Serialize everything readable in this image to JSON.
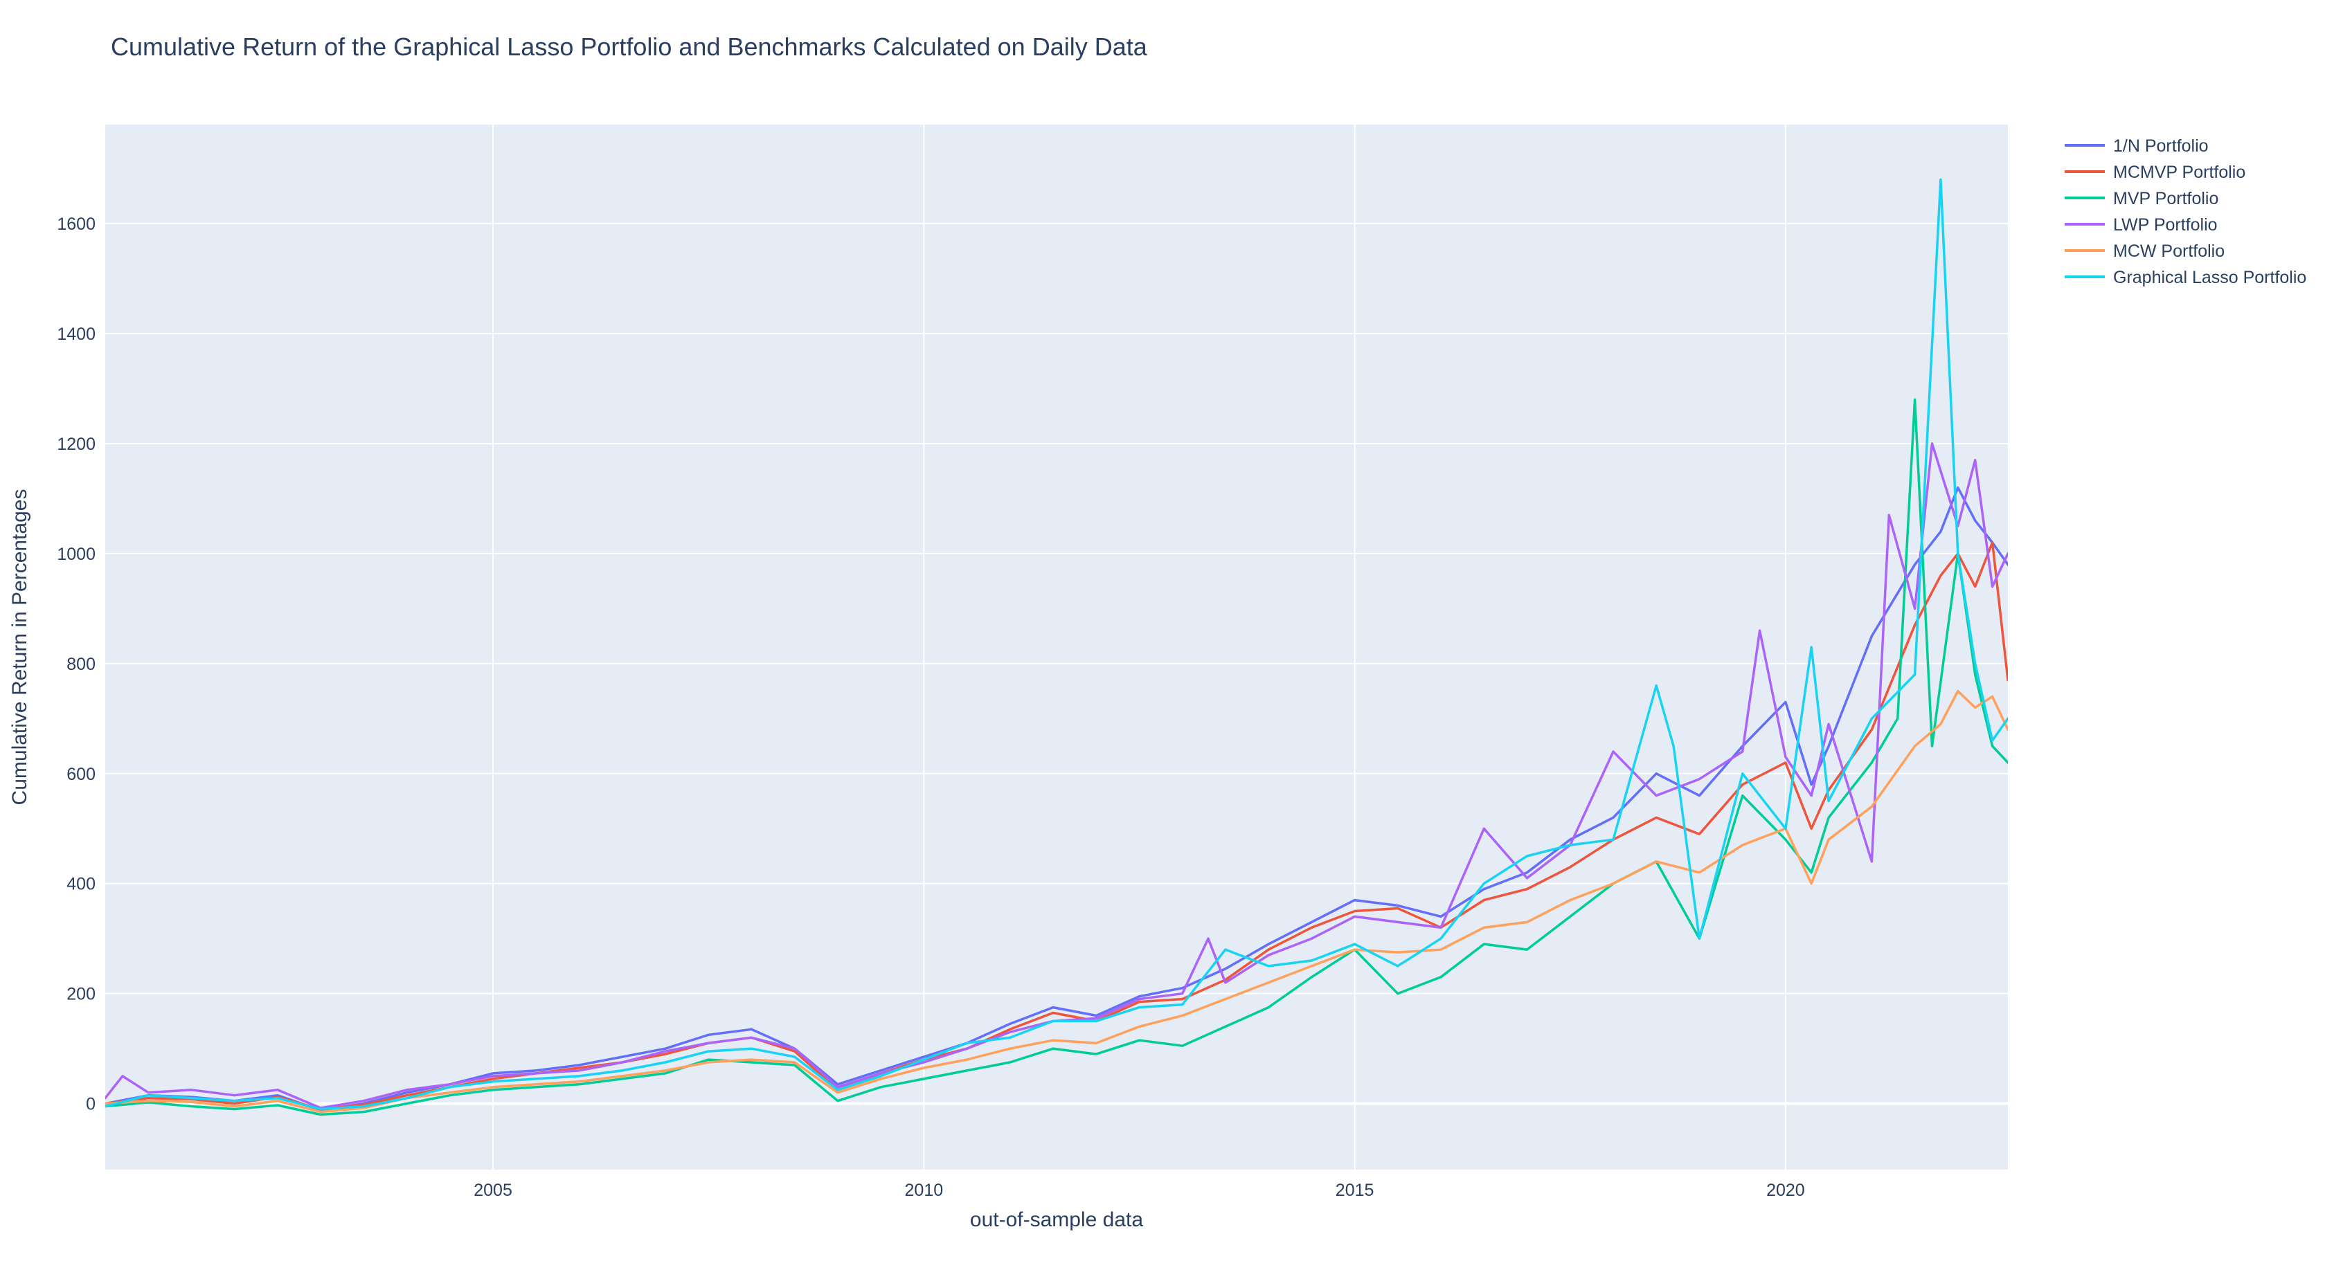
{
  "chart_data": {
    "type": "line",
    "title": "Cumulative Return of the Graphical Lasso Portfolio and Benchmarks Calculated on Daily Data",
    "xlabel": "out-of-sample data",
    "ylabel": "Cumulative Return in Percentages",
    "xlim": [
      2000.5,
      2022.58
    ],
    "ylim": [
      -120,
      1780
    ],
    "x_ticks": [
      2005,
      2010,
      2015,
      2020
    ],
    "x_tick_labels": [
      "2005",
      "2010",
      "2015",
      "2020"
    ],
    "y_ticks": [
      0,
      200,
      400,
      600,
      800,
      1000,
      1200,
      1400,
      1600
    ],
    "y_tick_labels": [
      "0",
      "200",
      "400",
      "600",
      "800",
      "1000",
      "1200",
      "1400",
      "1600"
    ],
    "grid": true,
    "legend_position": "top-right",
    "colors": {
      "background": "#ffffff",
      "plot_background": "#e5ecf6",
      "grid": "#ffffff",
      "text": "#2a3f5f"
    },
    "series": [
      {
        "name": "1/N Portfolio",
        "color": "#636efa",
        "points": [
          [
            2000.5,
            0
          ],
          [
            2001.0,
            15
          ],
          [
            2001.5,
            12
          ],
          [
            2002.0,
            5
          ],
          [
            2002.5,
            15
          ],
          [
            2003.0,
            -12
          ],
          [
            2003.5,
            0
          ],
          [
            2004.0,
            20
          ],
          [
            2004.5,
            35
          ],
          [
            2005.0,
            55
          ],
          [
            2005.5,
            60
          ],
          [
            2006.0,
            70
          ],
          [
            2006.5,
            85
          ],
          [
            2007.0,
            100
          ],
          [
            2007.5,
            125
          ],
          [
            2008.0,
            135
          ],
          [
            2008.5,
            100
          ],
          [
            2009.0,
            35
          ],
          [
            2009.5,
            60
          ],
          [
            2010.0,
            85
          ],
          [
            2010.5,
            110
          ],
          [
            2011.0,
            145
          ],
          [
            2011.5,
            175
          ],
          [
            2012.0,
            160
          ],
          [
            2012.5,
            195
          ],
          [
            2013.0,
            210
          ],
          [
            2013.5,
            245
          ],
          [
            2014.0,
            290
          ],
          [
            2014.5,
            330
          ],
          [
            2015.0,
            370
          ],
          [
            2015.5,
            360
          ],
          [
            2016.0,
            340
          ],
          [
            2016.5,
            390
          ],
          [
            2017.0,
            420
          ],
          [
            2017.5,
            480
          ],
          [
            2018.0,
            520
          ],
          [
            2018.5,
            600
          ],
          [
            2019.0,
            560
          ],
          [
            2019.5,
            650
          ],
          [
            2020.0,
            730
          ],
          [
            2020.3,
            580
          ],
          [
            2020.5,
            650
          ],
          [
            2021.0,
            850
          ],
          [
            2021.5,
            980
          ],
          [
            2021.8,
            1040
          ],
          [
            2022.0,
            1120
          ],
          [
            2022.2,
            1060
          ],
          [
            2022.4,
            1020
          ],
          [
            2022.58,
            980
          ]
        ]
      },
      {
        "name": "MCMVP Portfolio",
        "color": "#ef553b",
        "points": [
          [
            2000.5,
            0
          ],
          [
            2001.0,
            10
          ],
          [
            2001.5,
            8
          ],
          [
            2002.0,
            0
          ],
          [
            2002.5,
            12
          ],
          [
            2003.0,
            -10
          ],
          [
            2003.5,
            -2
          ],
          [
            2004.0,
            15
          ],
          [
            2004.5,
            30
          ],
          [
            2005.0,
            45
          ],
          [
            2005.5,
            55
          ],
          [
            2006.0,
            65
          ],
          [
            2006.5,
            75
          ],
          [
            2007.0,
            90
          ],
          [
            2007.5,
            110
          ],
          [
            2008.0,
            120
          ],
          [
            2008.5,
            95
          ],
          [
            2009.0,
            25
          ],
          [
            2009.5,
            55
          ],
          [
            2010.0,
            80
          ],
          [
            2010.5,
            100
          ],
          [
            2011.0,
            135
          ],
          [
            2011.5,
            165
          ],
          [
            2012.0,
            150
          ],
          [
            2012.5,
            185
          ],
          [
            2013.0,
            190
          ],
          [
            2013.5,
            225
          ],
          [
            2014.0,
            280
          ],
          [
            2014.5,
            320
          ],
          [
            2015.0,
            350
          ],
          [
            2015.5,
            355
          ],
          [
            2016.0,
            320
          ],
          [
            2016.5,
            370
          ],
          [
            2017.0,
            390
          ],
          [
            2017.5,
            430
          ],
          [
            2018.0,
            480
          ],
          [
            2018.5,
            520
          ],
          [
            2019.0,
            490
          ],
          [
            2019.5,
            580
          ],
          [
            2020.0,
            620
          ],
          [
            2020.3,
            500
          ],
          [
            2020.5,
            570
          ],
          [
            2021.0,
            680
          ],
          [
            2021.5,
            870
          ],
          [
            2021.8,
            960
          ],
          [
            2022.0,
            1000
          ],
          [
            2022.2,
            940
          ],
          [
            2022.4,
            1020
          ],
          [
            2022.58,
            770
          ]
        ]
      },
      {
        "name": "MVP Portfolio",
        "color": "#00cc96",
        "points": [
          [
            2000.5,
            -5
          ],
          [
            2001.0,
            2
          ],
          [
            2001.5,
            -5
          ],
          [
            2002.0,
            -10
          ],
          [
            2002.5,
            -3
          ],
          [
            2003.0,
            -20
          ],
          [
            2003.5,
            -15
          ],
          [
            2004.0,
            0
          ],
          [
            2004.5,
            15
          ],
          [
            2005.0,
            25
          ],
          [
            2005.5,
            30
          ],
          [
            2006.0,
            35
          ],
          [
            2006.5,
            45
          ],
          [
            2007.0,
            55
          ],
          [
            2007.5,
            80
          ],
          [
            2008.0,
            75
          ],
          [
            2008.5,
            70
          ],
          [
            2009.0,
            5
          ],
          [
            2009.5,
            30
          ],
          [
            2010.0,
            45
          ],
          [
            2010.5,
            60
          ],
          [
            2011.0,
            75
          ],
          [
            2011.5,
            100
          ],
          [
            2012.0,
            90
          ],
          [
            2012.5,
            115
          ],
          [
            2013.0,
            105
          ],
          [
            2013.5,
            140
          ],
          [
            2014.0,
            175
          ],
          [
            2014.5,
            230
          ],
          [
            2015.0,
            280
          ],
          [
            2015.5,
            200
          ],
          [
            2016.0,
            230
          ],
          [
            2016.5,
            290
          ],
          [
            2017.0,
            280
          ],
          [
            2017.5,
            340
          ],
          [
            2018.0,
            400
          ],
          [
            2018.5,
            440
          ],
          [
            2019.0,
            300
          ],
          [
            2019.5,
            560
          ],
          [
            2020.0,
            480
          ],
          [
            2020.3,
            420
          ],
          [
            2020.5,
            520
          ],
          [
            2021.0,
            620
          ],
          [
            2021.3,
            700
          ],
          [
            2021.5,
            1280
          ],
          [
            2021.7,
            650
          ],
          [
            2022.0,
            1000
          ],
          [
            2022.2,
            780
          ],
          [
            2022.4,
            650
          ],
          [
            2022.58,
            620
          ]
        ]
      },
      {
        "name": "LWP Portfolio",
        "color": "#ab63fa",
        "points": [
          [
            2000.5,
            10
          ],
          [
            2000.7,
            50
          ],
          [
            2001.0,
            20
          ],
          [
            2001.5,
            25
          ],
          [
            2002.0,
            15
          ],
          [
            2002.5,
            25
          ],
          [
            2003.0,
            -8
          ],
          [
            2003.5,
            5
          ],
          [
            2004.0,
            25
          ],
          [
            2004.5,
            35
          ],
          [
            2005.0,
            50
          ],
          [
            2005.5,
            55
          ],
          [
            2006.0,
            60
          ],
          [
            2006.5,
            75
          ],
          [
            2007.0,
            95
          ],
          [
            2007.5,
            110
          ],
          [
            2008.0,
            120
          ],
          [
            2008.5,
            100
          ],
          [
            2009.0,
            30
          ],
          [
            2009.5,
            55
          ],
          [
            2010.0,
            75
          ],
          [
            2010.5,
            100
          ],
          [
            2011.0,
            130
          ],
          [
            2011.5,
            150
          ],
          [
            2012.0,
            155
          ],
          [
            2012.5,
            190
          ],
          [
            2013.0,
            200
          ],
          [
            2013.3,
            300
          ],
          [
            2013.5,
            220
          ],
          [
            2014.0,
            270
          ],
          [
            2014.5,
            300
          ],
          [
            2015.0,
            340
          ],
          [
            2015.5,
            330
          ],
          [
            2016.0,
            320
          ],
          [
            2016.5,
            500
          ],
          [
            2017.0,
            410
          ],
          [
            2017.5,
            470
          ],
          [
            2018.0,
            640
          ],
          [
            2018.5,
            560
          ],
          [
            2019.0,
            590
          ],
          [
            2019.5,
            640
          ],
          [
            2019.7,
            860
          ],
          [
            2020.0,
            630
          ],
          [
            2020.3,
            560
          ],
          [
            2020.5,
            690
          ],
          [
            2021.0,
            440
          ],
          [
            2021.2,
            1070
          ],
          [
            2021.5,
            900
          ],
          [
            2021.7,
            1200
          ],
          [
            2022.0,
            1050
          ],
          [
            2022.2,
            1170
          ],
          [
            2022.4,
            940
          ],
          [
            2022.58,
            1000
          ]
        ]
      },
      {
        "name": "MCW Portfolio",
        "color": "#ffa15a",
        "points": [
          [
            2000.5,
            0
          ],
          [
            2001.0,
            5
          ],
          [
            2001.5,
            3
          ],
          [
            2002.0,
            -5
          ],
          [
            2002.5,
            5
          ],
          [
            2003.0,
            -15
          ],
          [
            2003.5,
            -8
          ],
          [
            2004.0,
            10
          ],
          [
            2004.5,
            20
          ],
          [
            2005.0,
            30
          ],
          [
            2005.5,
            35
          ],
          [
            2006.0,
            40
          ],
          [
            2006.5,
            50
          ],
          [
            2007.0,
            60
          ],
          [
            2007.5,
            75
          ],
          [
            2008.0,
            80
          ],
          [
            2008.5,
            75
          ],
          [
            2009.0,
            20
          ],
          [
            2009.5,
            45
          ],
          [
            2010.0,
            65
          ],
          [
            2010.5,
            80
          ],
          [
            2011.0,
            100
          ],
          [
            2011.5,
            115
          ],
          [
            2012.0,
            110
          ],
          [
            2012.5,
            140
          ],
          [
            2013.0,
            160
          ],
          [
            2013.5,
            190
          ],
          [
            2014.0,
            220
          ],
          [
            2014.5,
            250
          ],
          [
            2015.0,
            280
          ],
          [
            2015.5,
            275
          ],
          [
            2016.0,
            280
          ],
          [
            2016.5,
            320
          ],
          [
            2017.0,
            330
          ],
          [
            2017.5,
            370
          ],
          [
            2018.0,
            400
          ],
          [
            2018.5,
            440
          ],
          [
            2019.0,
            420
          ],
          [
            2019.5,
            470
          ],
          [
            2020.0,
            500
          ],
          [
            2020.3,
            400
          ],
          [
            2020.5,
            480
          ],
          [
            2021.0,
            540
          ],
          [
            2021.5,
            650
          ],
          [
            2021.8,
            690
          ],
          [
            2022.0,
            750
          ],
          [
            2022.2,
            720
          ],
          [
            2022.4,
            740
          ],
          [
            2022.58,
            680
          ]
        ]
      },
      {
        "name": "Graphical Lasso Portfolio",
        "color": "#19d3f3",
        "points": [
          [
            2000.5,
            -5
          ],
          [
            2001.0,
            15
          ],
          [
            2001.5,
            10
          ],
          [
            2002.0,
            5
          ],
          [
            2002.5,
            10
          ],
          [
            2003.0,
            -10
          ],
          [
            2003.5,
            -5
          ],
          [
            2004.0,
            10
          ],
          [
            2004.5,
            30
          ],
          [
            2005.0,
            40
          ],
          [
            2005.5,
            45
          ],
          [
            2006.0,
            50
          ],
          [
            2006.5,
            60
          ],
          [
            2007.0,
            75
          ],
          [
            2007.5,
            95
          ],
          [
            2008.0,
            100
          ],
          [
            2008.5,
            85
          ],
          [
            2009.0,
            25
          ],
          [
            2009.5,
            50
          ],
          [
            2010.0,
            80
          ],
          [
            2010.5,
            110
          ],
          [
            2011.0,
            120
          ],
          [
            2011.5,
            150
          ],
          [
            2012.0,
            150
          ],
          [
            2012.5,
            175
          ],
          [
            2013.0,
            180
          ],
          [
            2013.5,
            280
          ],
          [
            2014.0,
            250
          ],
          [
            2014.5,
            260
          ],
          [
            2015.0,
            290
          ],
          [
            2015.5,
            250
          ],
          [
            2016.0,
            300
          ],
          [
            2016.5,
            400
          ],
          [
            2017.0,
            450
          ],
          [
            2017.5,
            470
          ],
          [
            2018.0,
            480
          ],
          [
            2018.5,
            760
          ],
          [
            2018.7,
            650
          ],
          [
            2019.0,
            300
          ],
          [
            2019.5,
            600
          ],
          [
            2020.0,
            500
          ],
          [
            2020.3,
            830
          ],
          [
            2020.5,
            550
          ],
          [
            2021.0,
            700
          ],
          [
            2021.5,
            780
          ],
          [
            2021.8,
            1680
          ],
          [
            2022.0,
            1000
          ],
          [
            2022.2,
            800
          ],
          [
            2022.4,
            660
          ],
          [
            2022.58,
            700
          ]
        ]
      }
    ]
  }
}
